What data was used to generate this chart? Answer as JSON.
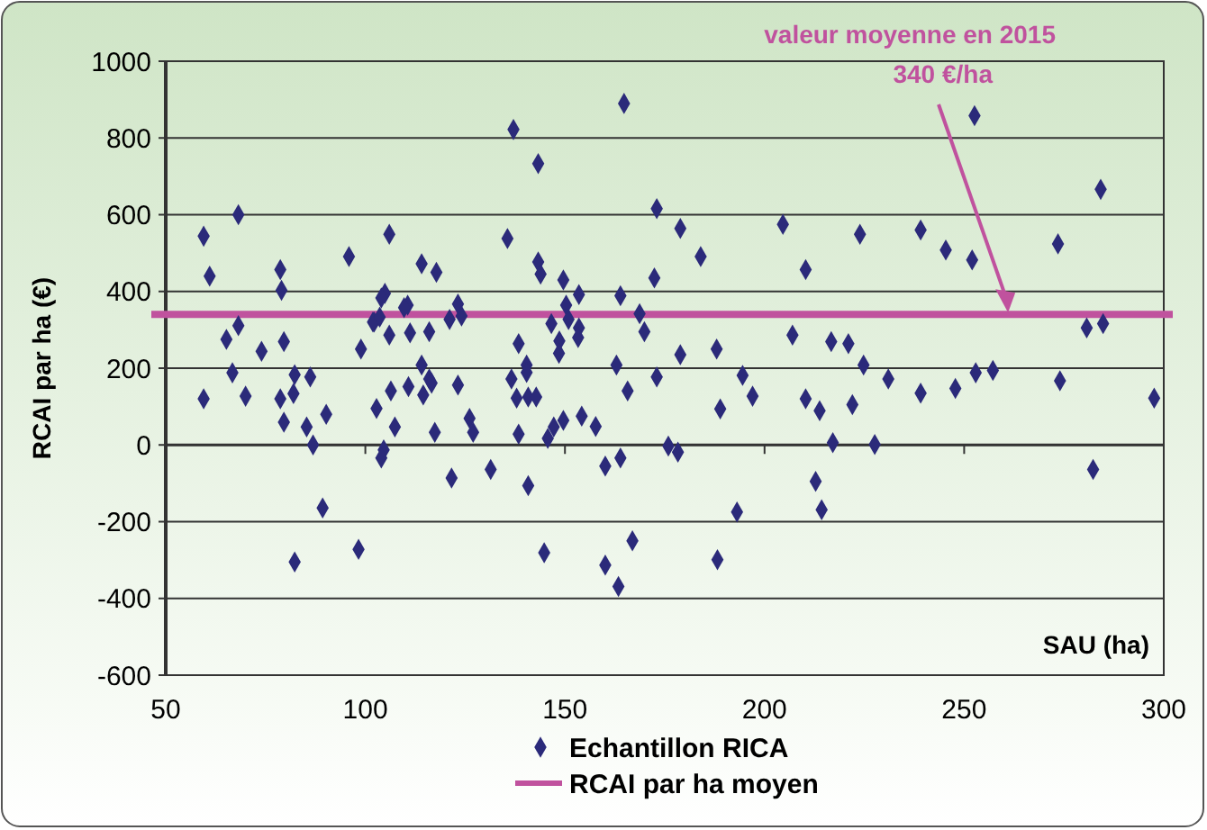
{
  "chart_data": {
    "type": "scatter",
    "xlabel": "SAU (ha)",
    "ylabel": "RCAI par ha (€)",
    "xlim": [
      50,
      300
    ],
    "xticks": [
      50,
      100,
      150,
      200,
      250,
      300
    ],
    "ylim": [
      -600,
      1000
    ],
    "yticks": [
      -600,
      -400,
      -200,
      0,
      200,
      400,
      600,
      800,
      1000
    ],
    "grid": "y",
    "legend": "bottom",
    "marker": "diamond",
    "series": [
      {
        "name": "Echantillon RICA",
        "color": "#2b2a7a",
        "x": [
          59.5,
          61,
          68.2,
          65.2,
          68.2,
          66.7,
          59.5,
          70,
          74,
          78.7,
          79,
          79.6,
          82.3,
          86.2,
          78.7,
          82,
          79.6,
          85.3,
          86.9,
          90.2,
          89.3,
          82.3,
          95.9,
          98.9,
          101.9,
          102.8,
          98.3,
          164.8,
          137.1,
          143.3,
          106,
          135.6,
          114.1,
          117.8,
          143.3,
          143.9,
          149.6,
          153.5,
          163.9,
          104.9,
          104,
          110.6,
          109.7,
          102.2,
          103.6,
          123.2,
          121.1,
          124.1,
          150.3,
          146.6,
          150.9,
          153.5,
          153.3,
          148.6,
          148.5,
          168.7,
          169.9,
          106,
          111.2,
          116,
          138.4,
          114.1,
          140.4,
          140.4,
          136.6,
          162.9,
          116,
          116.6,
          123.2,
          110.8,
          106.4,
          114.5,
          165.7,
          137.9,
          140.8,
          142.8,
          126.1,
          149.6,
          147.2,
          154.2,
          157.7,
          107.4,
          117.4,
          127,
          138.4,
          145.7,
          104.6,
          104,
          121.6,
          131.4,
          140.8,
          160.1,
          163.9,
          144.8,
          166.9,
          160.1,
          163.4,
          173,
          178.9,
          204.6,
          223.9,
          184,
          172.4,
          210.3,
          178.9,
          188,
          207,
          216.7,
          221,
          224.8,
          231,
          173,
          194.5,
          197,
          188.9,
          210.3,
          213.8,
          222,
          217.1,
          227.6,
          175.9,
          178.3,
          212.8,
          214.3,
          193.1,
          188.2,
          252.6,
          284.2,
          239.1,
          245.4,
          252,
          273.5,
          280.7,
          284.8,
          239.1,
          247.8,
          252.9,
          257.2,
          274,
          297.6,
          282.3
        ],
        "values": [
          544,
          440,
          600,
          275,
          311,
          188,
          120,
          127,
          244,
          457,
          403,
          269,
          183,
          177,
          120,
          134,
          59,
          47,
          0,
          80,
          -164,
          -305,
          491,
          250,
          320,
          95,
          -272,
          890,
          822,
          733,
          549,
          538,
          472,
          450,
          477,
          445,
          430,
          392,
          389,
          395,
          383,
          364,
          358,
          320,
          333,
          367,
          327,
          336,
          364,
          316,
          327,
          305,
          280,
          271,
          239,
          342,
          295,
          286,
          292,
          295,
          264,
          208,
          208,
          189,
          172,
          208,
          172,
          161,
          156,
          152,
          141,
          130,
          141,
          122,
          125,
          125,
          69,
          64,
          47,
          75,
          48,
          47,
          33,
          33,
          28,
          17,
          -13,
          -34,
          -86,
          -64,
          -106,
          -55,
          -34,
          -281,
          -250,
          -313,
          -369,
          616,
          564,
          575,
          549,
          491,
          435,
          457,
          235,
          250,
          286,
          269,
          264,
          208,
          172,
          177,
          181,
          127,
          94,
          120,
          89,
          105,
          6,
          1,
          -3,
          -19,
          -95,
          -169,
          -175,
          -299,
          858,
          666,
          560,
          508,
          482,
          524,
          305,
          316,
          135,
          147,
          188,
          194,
          167,
          122,
          -64
        ]
      }
    ],
    "ref_lines": [
      {
        "axis": "y",
        "value": 340,
        "label": "RCAI par ha moyen",
        "color": "#c0529e"
      }
    ],
    "annotations": [
      {
        "text": "valeur moyenne en 2015\n340 €/ha",
        "x": 261,
        "y": 340
      }
    ]
  }
}
